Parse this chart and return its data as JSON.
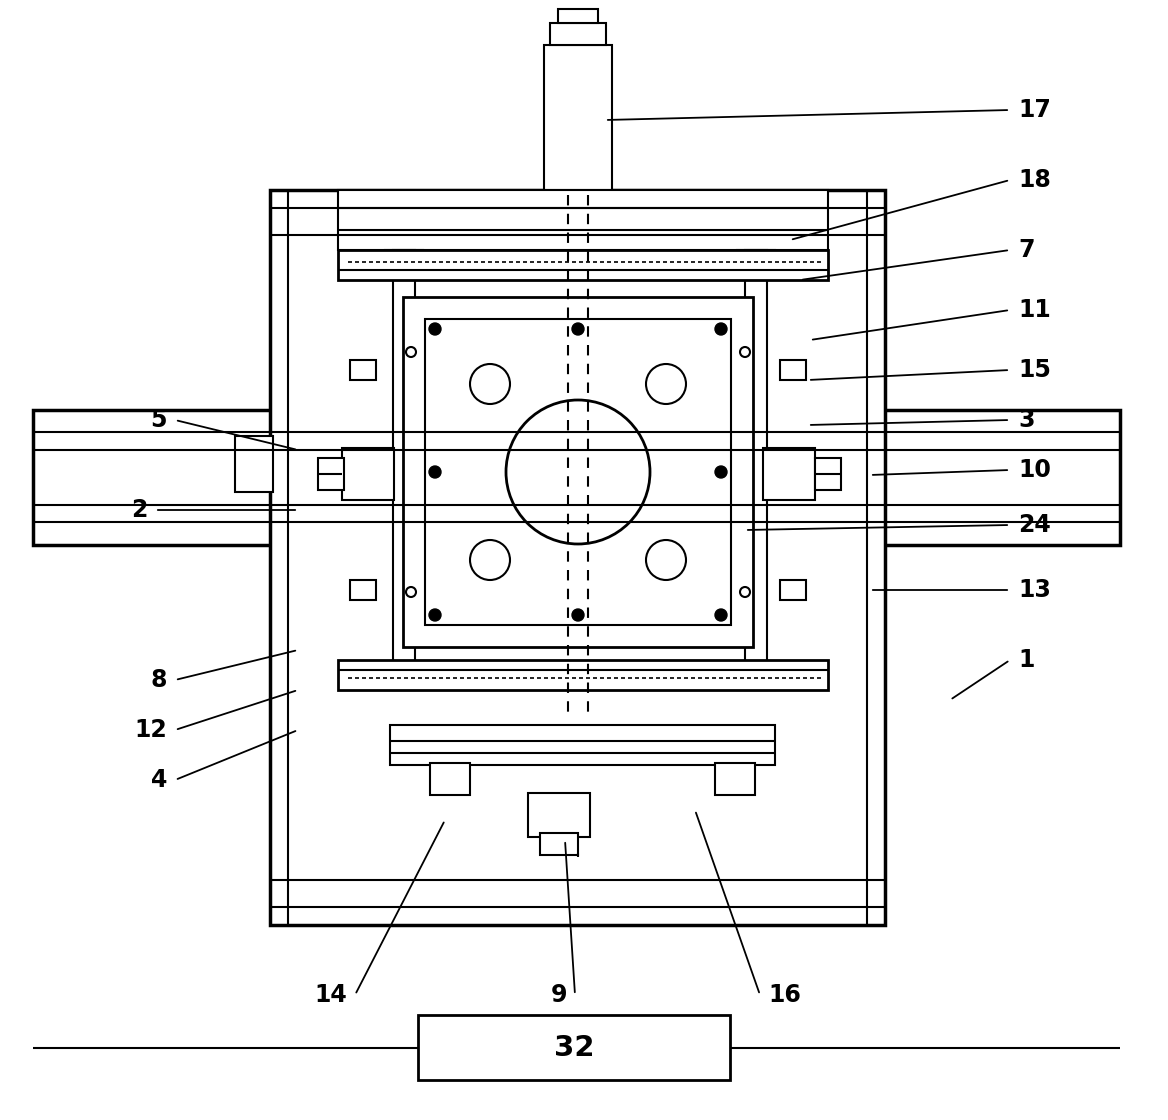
{
  "bg_color": "#ffffff",
  "line_color": "#000000",
  "lw": 1.5,
  "lw2": 2.0,
  "lw3": 2.5,
  "fig_width": 11.68,
  "fig_height": 11.2,
  "annotations": [
    [
      "17",
      1010,
      1010,
      605,
      1000
    ],
    [
      "18",
      1010,
      940,
      790,
      880
    ],
    [
      "7",
      1010,
      870,
      800,
      840
    ],
    [
      "11",
      1010,
      810,
      810,
      780
    ],
    [
      "15",
      1010,
      750,
      808,
      740
    ],
    [
      "3",
      1010,
      700,
      808,
      695
    ],
    [
      "10",
      1010,
      650,
      870,
      645
    ],
    [
      "24",
      1010,
      595,
      745,
      590
    ],
    [
      "13",
      1010,
      530,
      870,
      530
    ],
    [
      "1",
      1010,
      460,
      950,
      420
    ],
    [
      "16",
      760,
      125,
      695,
      310
    ],
    [
      "9",
      575,
      125,
      565,
      280
    ],
    [
      "14",
      355,
      125,
      445,
      300
    ],
    [
      "4",
      175,
      340,
      298,
      390
    ],
    [
      "12",
      175,
      390,
      298,
      430
    ],
    [
      "8",
      175,
      440,
      298,
      470
    ],
    [
      "2",
      155,
      610,
      298,
      610
    ],
    [
      "5",
      175,
      700,
      298,
      670
    ]
  ]
}
